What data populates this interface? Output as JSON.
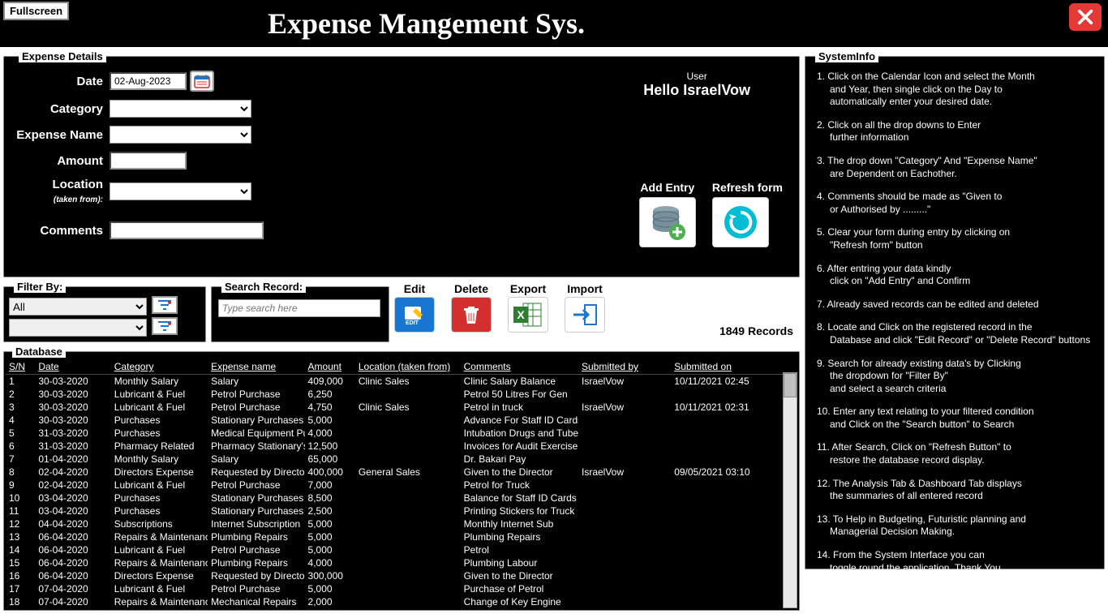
{
  "header": {
    "fullscreen": "Fullscreen",
    "title": "Expense Mangement Sys."
  },
  "expenseDetails": {
    "legend": "Expense Details",
    "labels": {
      "date": "Date",
      "category": "Category",
      "expenseName": "Expense Name",
      "amount": "Amount",
      "location": "Location",
      "locationSub": "(taken from):",
      "comments": "Comments"
    },
    "dateValue": "02-Aug-2023",
    "user": {
      "label": "User",
      "greeting": "Hello IsraelVow"
    },
    "addEntry": "Add Entry",
    "refreshForm": "Refresh form"
  },
  "filter": {
    "legend": "Filter By:",
    "all": "All"
  },
  "search": {
    "legend": "Search Record:",
    "placeholder": "Type search here"
  },
  "tools": {
    "edit": "Edit",
    "delete": "Delete",
    "export": "Export",
    "import": "Import"
  },
  "recordsCount": "1849 Records",
  "database": {
    "legend": "Database",
    "columns": [
      "S/N",
      "Date",
      "Category",
      "Expense name",
      "Amount",
      "Location (taken from)",
      "Comments",
      "Submitted by",
      "Submitted on"
    ],
    "colWidths": [
      "35px",
      "90px",
      "115px",
      "115px",
      "60px",
      "125px",
      "140px",
      "110px",
      "150px"
    ],
    "rows": [
      [
        "1",
        "30-03-2020",
        "Monthly Salary",
        "Salary",
        "409,000",
        "Clinic Sales",
        "Clinic Salary Balance",
        "IsraelVow",
        "10/11/2021 02:45"
      ],
      [
        "2",
        "30-03-2020",
        "Lubricant & Fuel",
        "Petrol Purchase",
        "6,250",
        "",
        "Petrol 50 Litres For Gen",
        "",
        ""
      ],
      [
        "3",
        "30-03-2020",
        "Lubricant & Fuel",
        "Petrol Purchase",
        "4,750",
        "Clinic Sales",
        "Petrol in truck",
        "IsraelVow",
        "10/11/2021 02:31"
      ],
      [
        "4",
        "30-03-2020",
        "Purchases",
        "Stationary Purchases",
        "5,000",
        "",
        "Advance For Staff ID Cards",
        "",
        ""
      ],
      [
        "5",
        "31-03-2020",
        "Purchases",
        "Medical Equipment Pu",
        "4,000",
        "",
        "Intubation Drugs and Tube",
        "",
        ""
      ],
      [
        "6",
        "31-03-2020",
        "Pharmacy Related",
        "Pharmacy Stationary's",
        "12,500",
        "",
        "Invoices for Audit Exercise",
        "",
        ""
      ],
      [
        "7",
        "01-04-2020",
        "Monthly Salary",
        "Salary",
        "65,000",
        "",
        "Dr. Bakari Pay",
        "",
        ""
      ],
      [
        "8",
        "02-04-2020",
        "Directors Expense",
        "Requested by Directo",
        "400,000",
        "General Sales",
        "Given to the Director",
        "IsraelVow",
        "09/05/2021 03:10"
      ],
      [
        "9",
        "02-04-2020",
        "Lubricant & Fuel",
        "Petrol Purchase",
        "7,000",
        "",
        "Petrol for Truck",
        "",
        ""
      ],
      [
        "10",
        "03-04-2020",
        "Purchases",
        "Stationary Purchases",
        "8,500",
        "",
        "Balance for Staff ID Cards",
        "",
        ""
      ],
      [
        "11",
        "03-04-2020",
        "Purchases",
        "Stationary Purchases",
        "2,500",
        "",
        "Printing Stickers for Truck",
        "",
        ""
      ],
      [
        "12",
        "04-04-2020",
        "Subscriptions",
        "Internet Subscription",
        "5,000",
        "",
        "Monthly Internet Sub",
        "",
        ""
      ],
      [
        "13",
        "06-04-2020",
        "Repairs & Maintenanc",
        "Plumbing Repairs",
        "5,000",
        "",
        "Plumbing Repairs",
        "",
        ""
      ],
      [
        "14",
        "06-04-2020",
        "Lubricant & Fuel",
        "Petrol Purchase",
        "5,000",
        "",
        "Petrol",
        "",
        ""
      ],
      [
        "15",
        "06-04-2020",
        "Repairs & Maintenanc",
        "Plumbing Repairs",
        "4,000",
        "",
        "Plumbing Labour",
        "",
        ""
      ],
      [
        "16",
        "06-04-2020",
        "Directors Expense",
        "Requested by Directo",
        "300,000",
        "",
        "Given to the Director",
        "",
        ""
      ],
      [
        "17",
        "07-04-2020",
        "Lubricant & Fuel",
        "Petrol Purchase",
        "5,000",
        "",
        "Purchase of Petrol",
        "",
        ""
      ],
      [
        "18",
        "07-04-2020",
        "Repairs & Maintenanc",
        "Mechanical Repairs",
        "2,000",
        "",
        "Change of Key Engine",
        "",
        ""
      ]
    ]
  },
  "systemInfo": {
    "legend": "SystemInfo",
    "items": [
      [
        "1. Click on the Calendar Icon and select the Month",
        "and Year, then single click on the Day to",
        "automatically enter your desired date."
      ],
      [
        "2. Click on all the drop downs to Enter",
        "further information"
      ],
      [
        "3. The drop down \"Category\" And \"Expense Name\"",
        "are Dependent on Eachother."
      ],
      [
        "4. Comments should be made as \"Given to",
        "or Authorised by .........\""
      ],
      [
        "5. Clear your form during entry by clicking on",
        "\"Refresh form\" button"
      ],
      [
        "6. After entring your data kindly",
        "click on \"Add Entry\" and Confirm"
      ],
      [
        "7. Already saved records can be edited and deleted"
      ],
      [
        "8. Locate and Click on the registered record in the",
        "Database and click \"Edit Record\" or \"Delete Record\" buttons"
      ],
      [
        "9. Search for already existing data's by Clicking",
        "the dropdown for \"Filter By\"",
        "and select a search criteria"
      ],
      [
        "10. Enter any text relating to your filtered condition",
        "and Click on the \"Search button\" to Search"
      ],
      [
        "11. After Search, Click on \"Refresh Button\" to",
        "restore the database record display."
      ],
      [
        "12. The Analysis Tab & Dashboard Tab displays",
        "the summaries of all entered record"
      ],
      [
        "13. To Help in Budgeting, Futuristic planning and",
        "Managerial Decision Making."
      ],
      [
        "14. From the System Interface you can",
        "toggle round the application. Thank You"
      ]
    ]
  },
  "colors": {
    "editBg": "#1976d2",
    "deleteBg": "#d32f2f",
    "exportBg": "#2e7d32",
    "importBg": "#ffffff",
    "refreshBg": "#00bcd4"
  }
}
